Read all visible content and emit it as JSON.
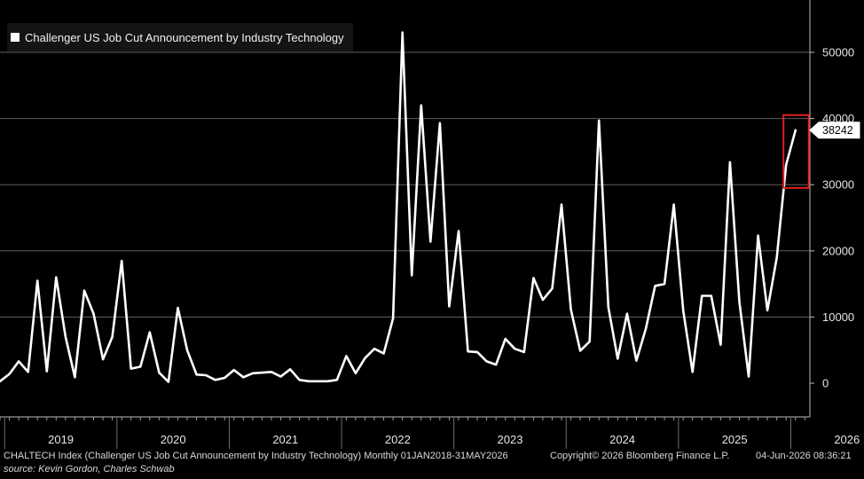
{
  "chart_data": {
    "type": "line",
    "legend": "Challenger US Job Cut Announcement by Industry Technology",
    "y_ticks": [
      "0",
      "10000",
      "20000",
      "30000",
      "40000",
      "50000"
    ],
    "ylim": [
      -5000,
      57000
    ],
    "x_year_labels": [
      "2019",
      "2020",
      "2021",
      "2022",
      "2023",
      "2024",
      "2025",
      "2026"
    ],
    "last_value_label": "38242",
    "start": "2018-12",
    "grid": true,
    "highlight": "red box around last two points",
    "series": [
      {
        "values": [
          300,
          1400,
          3300,
          1700,
          15500,
          1800,
          16000,
          7000,
          900,
          14000,
          10500,
          3600,
          7000,
          18500,
          2200,
          2500,
          7700,
          1600,
          200,
          11400,
          5000,
          1300,
          1200,
          500,
          800,
          2000,
          900,
          1500,
          1600,
          1700,
          1000,
          2100,
          500,
          300,
          300,
          300,
          500,
          4100,
          1500,
          3800,
          5200,
          4500,
          9800,
          53000,
          16300,
          42000,
          21400,
          39300,
          11600,
          23000,
          4800,
          4700,
          3300,
          2800,
          6700,
          5200,
          4700,
          15900,
          12600,
          14300,
          27000,
          11100,
          4900,
          6300,
          39700,
          11500,
          3700,
          10500,
          3400,
          8200,
          14700,
          15000,
          27000,
          11000,
          1700,
          13200,
          13200,
          5800,
          33400,
          12300,
          1000,
          22300,
          11000,
          19000,
          33000,
          38242
        ]
      }
    ]
  },
  "footer": {
    "ticker": "CHALTECH Index (Challenger US Job Cut Announcement by Industry Technology) Monthly 01JAN2018-31MAY2026",
    "copyright": "Copyright© 2026 Bloomberg Finance L.P.",
    "timestamp": "04-Jun-2026 08:36:21",
    "source": "source: Kevin Gordon, Charles Schwab"
  },
  "colors": {
    "background": "#000000",
    "line": "#ffffff",
    "grid": "#8a8a8a",
    "highlight": "#e02020"
  }
}
